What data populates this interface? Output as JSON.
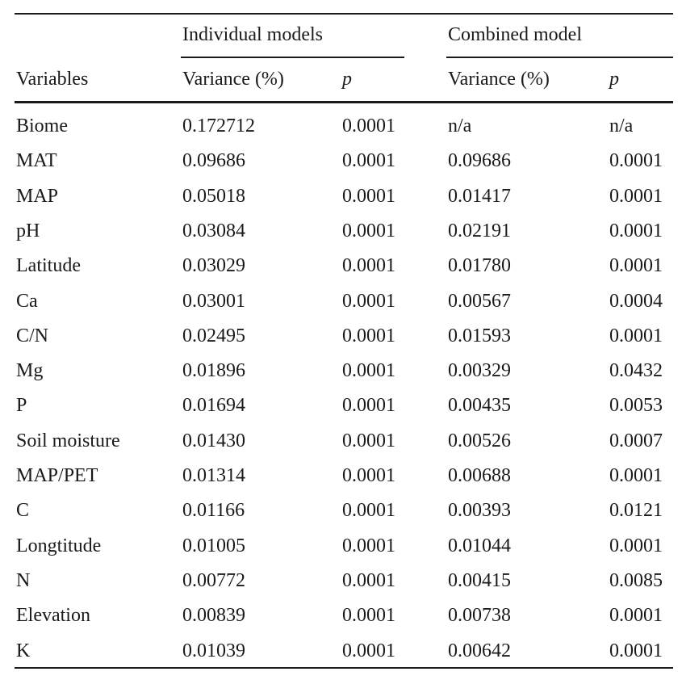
{
  "table": {
    "group_headers": {
      "individual": "Individual models",
      "combined": "Combined model"
    },
    "columns": {
      "variables": "Variables",
      "ind_variance": "Variance (%)",
      "ind_p": "p",
      "comb_variance": "Variance (%)",
      "comb_p": "p"
    },
    "rows": [
      {
        "var": "Biome",
        "ind_var": "0.172712",
        "ind_p": "0.0001",
        "comb_var": "n/a",
        "comb_p": "n/a"
      },
      {
        "var": "MAT",
        "ind_var": "0.09686",
        "ind_p": "0.0001",
        "comb_var": "0.09686",
        "comb_p": "0.0001"
      },
      {
        "var": "MAP",
        "ind_var": "0.05018",
        "ind_p": "0.0001",
        "comb_var": "0.01417",
        "comb_p": "0.0001"
      },
      {
        "var": "pH",
        "ind_var": "0.03084",
        "ind_p": "0.0001",
        "comb_var": "0.02191",
        "comb_p": "0.0001"
      },
      {
        "var": "Latitude",
        "ind_var": "0.03029",
        "ind_p": "0.0001",
        "comb_var": "0.01780",
        "comb_p": "0.0001"
      },
      {
        "var": "Ca",
        "ind_var": "0.03001",
        "ind_p": "0.0001",
        "comb_var": "0.00567",
        "comb_p": "0.0004"
      },
      {
        "var": "C/N",
        "ind_var": "0.02495",
        "ind_p": "0.0001",
        "comb_var": "0.01593",
        "comb_p": "0.0001"
      },
      {
        "var": "Mg",
        "ind_var": "0.01896",
        "ind_p": "0.0001",
        "comb_var": "0.00329",
        "comb_p": "0.0432"
      },
      {
        "var": "P",
        "ind_var": "0.01694",
        "ind_p": "0.0001",
        "comb_var": "0.00435",
        "comb_p": "0.0053"
      },
      {
        "var": "Soil moisture",
        "ind_var": "0.01430",
        "ind_p": "0.0001",
        "comb_var": "0.00526",
        "comb_p": "0.0007"
      },
      {
        "var": "MAP/PET",
        "ind_var": "0.01314",
        "ind_p": "0.0001",
        "comb_var": "0.00688",
        "comb_p": "0.0001"
      },
      {
        "var": "C",
        "ind_var": "0.01166",
        "ind_p": "0.0001",
        "comb_var": "0.00393",
        "comb_p": "0.0121"
      },
      {
        "var": "Longtitude",
        "ind_var": "0.01005",
        "ind_p": "0.0001",
        "comb_var": "0.01044",
        "comb_p": "0.0001"
      },
      {
        "var": "N",
        "ind_var": "0.00772",
        "ind_p": "0.0001",
        "comb_var": "0.00415",
        "comb_p": "0.0085"
      },
      {
        "var": "Elevation",
        "ind_var": "0.00839",
        "ind_p": "0.0001",
        "comb_var": "0.00738",
        "comb_p": "0.0001"
      },
      {
        "var": "K",
        "ind_var": "0.01039",
        "ind_p": "0.0001",
        "comb_var": "0.00642",
        "comb_p": "0.0001"
      }
    ]
  }
}
